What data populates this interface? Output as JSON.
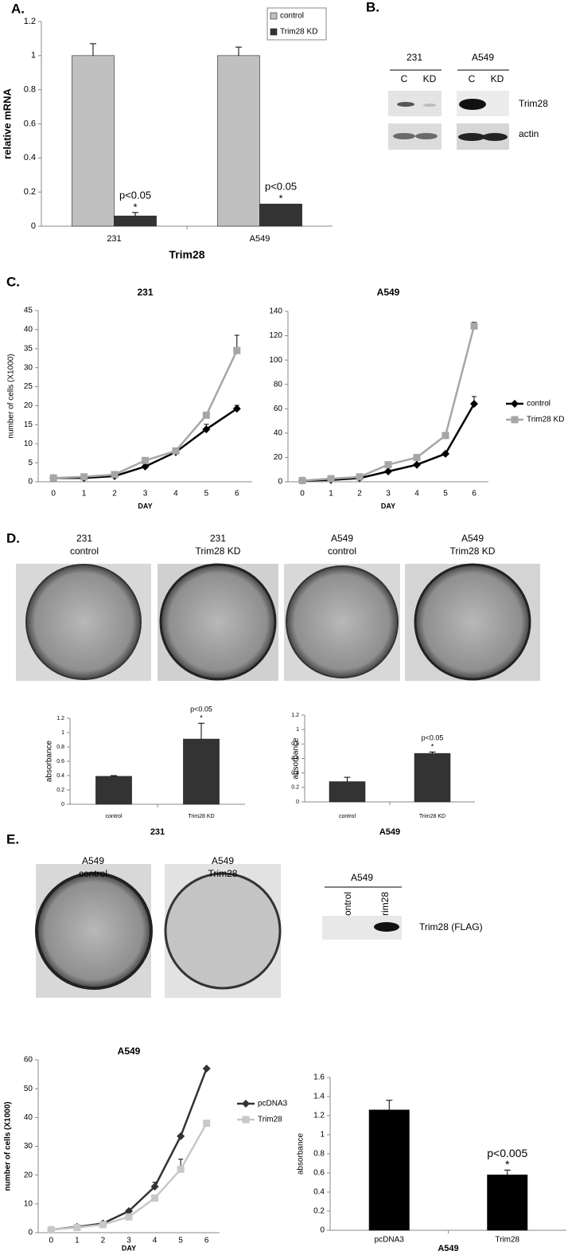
{
  "chart_data": [
    {
      "type": "bar",
      "categories": [
        "231",
        "A549"
      ],
      "series": [
        {
          "name": "control",
          "color": "#c0c0c0",
          "values": [
            1,
            1
          ],
          "errors": [
            0.07,
            0.05
          ]
        },
        {
          "name": "Trim28 KD",
          "color": "#333333",
          "values": [
            0.06,
            0.13
          ],
          "errors": [
            0.02,
            null
          ],
          "annotations": [
            [
              "p<0.05",
              "*"
            ],
            [
              "p<0.05",
              "*"
            ]
          ]
        }
      ],
      "ylim": [
        0,
        1.2
      ],
      "yticks": [
        0,
        0.2,
        0.4,
        0.6,
        0.8,
        1,
        1.2
      ],
      "ylabel": "relative mRNA",
      "xlabel": "Trim28",
      "legend": "top-right"
    },
    {
      "type": "line",
      "title": "231",
      "categories": [
        "0",
        "1",
        "2",
        "3",
        "4",
        "5",
        "6"
      ],
      "series": [
        {
          "color": "#000000",
          "marker": "diamond",
          "values": [
            1,
            1,
            1.5,
            4,
            7.8,
            13.8,
            19.2
          ],
          "errors": [
            null,
            null,
            null,
            1,
            null,
            1.3,
            0.9
          ]
        },
        {
          "color": "#a6a6a6",
          "marker": "square",
          "values": [
            1,
            1.3,
            1.9,
            5.6,
            8.1,
            17.5,
            34.5
          ],
          "errors": [
            null,
            null,
            null,
            0.6,
            null,
            null,
            4
          ]
        }
      ],
      "ylim": [
        0,
        45
      ],
      "yticks": [
        0,
        5,
        10,
        15,
        20,
        25,
        30,
        35,
        40,
        45
      ],
      "ylabel": "number of cells (X1000)",
      "xlabel": "DAY"
    },
    {
      "type": "line",
      "title": "A549",
      "categories": [
        "0",
        "1",
        "2",
        "3",
        "4",
        "5",
        "6"
      ],
      "series": [
        {
          "name": "control",
          "color": "#000000",
          "marker": "diamond",
          "values": [
            1,
            1.5,
            3,
            8.5,
            14,
            23,
            64
          ],
          "errors": [
            null,
            null,
            null,
            null,
            null,
            null,
            6
          ]
        },
        {
          "name": "Trim28 KD",
          "color": "#a6a6a6",
          "marker": "square",
          "values": [
            1,
            2.5,
            4,
            14,
            20,
            38,
            128
          ],
          "errors": [
            null,
            null,
            null,
            null,
            null,
            null,
            3
          ]
        }
      ],
      "ylim": [
        0,
        140
      ],
      "yticks": [
        0,
        20,
        40,
        60,
        80,
        100,
        120,
        140
      ],
      "xlabel": "DAY",
      "legend": "right"
    },
    {
      "type": "bar",
      "categories": [
        "control",
        "Trim28 KD"
      ],
      "color": "#333333",
      "values": [
        0.39,
        0.91
      ],
      "errors": [
        0.01,
        0.22
      ],
      "annotations": [
        null,
        [
          "p<0.05",
          "*"
        ]
      ],
      "ylim": [
        0,
        1.2
      ],
      "yticks": [
        0,
        0.2,
        0.4,
        0.6,
        0.8,
        1,
        1.2
      ],
      "ylabel": "absorbance",
      "xlabel": "231"
    },
    {
      "type": "bar",
      "categories": [
        "control",
        "Trim28 KD"
      ],
      "color": "#333333",
      "values": [
        0.28,
        0.67
      ],
      "errors": [
        0.06,
        0.02
      ],
      "annotations": [
        null,
        [
          "p<0.05",
          "*"
        ]
      ],
      "ylim": [
        0,
        1.2
      ],
      "yticks": [
        0,
        0.2,
        0.4,
        0.6,
        0.8,
        1,
        1.2
      ],
      "ylabel": "absorbance",
      "xlabel": "A549"
    },
    {
      "type": "line",
      "title": "A549",
      "categories": [
        "0",
        "1",
        "2",
        "3",
        "4",
        "5",
        "6"
      ],
      "series": [
        {
          "name": "pcDNA3",
          "color": "#333333",
          "marker": "diamond",
          "values": [
            1,
            2,
            3.2,
            7.5,
            16,
            33.5,
            57
          ],
          "errors": [
            null,
            null,
            null,
            null,
            1.5,
            null,
            null
          ]
        },
        {
          "name": "Trim28",
          "color": "#c8c8c8",
          "marker": "square",
          "values": [
            1,
            1.8,
            2.8,
            5.5,
            12,
            22,
            38
          ],
          "errors": [
            null,
            null,
            null,
            null,
            null,
            3.5,
            null
          ]
        }
      ],
      "ylim": [
        0,
        60
      ],
      "yticks": [
        0,
        10,
        20,
        30,
        40,
        50,
        60
      ],
      "ylabel": "number of cells (X1000)",
      "xlabel": "DAY",
      "legend": "right"
    },
    {
      "type": "bar",
      "categories": [
        "pcDNA3",
        "Trim28"
      ],
      "color": "#000000",
      "values": [
        1.26,
        0.58
      ],
      "errors": [
        0.1,
        0.05
      ],
      "annotations": [
        null,
        [
          "p<0.005",
          "*"
        ]
      ],
      "ylim": [
        0,
        1.6
      ],
      "yticks": [
        0,
        0.2,
        0.4,
        0.6,
        0.8,
        1,
        1.2,
        1.4,
        1.6
      ],
      "ylabel": "absorbance",
      "xlabel": "A549"
    }
  ],
  "labels": {
    "panels": [
      "A.",
      "B.",
      "C.",
      "D.",
      "E."
    ],
    "blot_b": {
      "cell_lines": [
        "231",
        "A549"
      ],
      "lanes": [
        "C",
        "KD",
        "C",
        "KD"
      ],
      "proteins": [
        "Trim28",
        "actin"
      ]
    },
    "dishes_d": [
      [
        "231",
        "control"
      ],
      [
        "231",
        "Trim28 KD"
      ],
      [
        "A549",
        "control"
      ],
      [
        "A549",
        "Trim28 KD"
      ]
    ],
    "dishes_e": [
      [
        "A549",
        "control"
      ],
      [
        "A549",
        "Trim28"
      ]
    ],
    "blot_e": {
      "cell_line": "A549",
      "lanes": [
        "control",
        "Trim28"
      ],
      "protein": "Trim28 (FLAG)"
    }
  }
}
